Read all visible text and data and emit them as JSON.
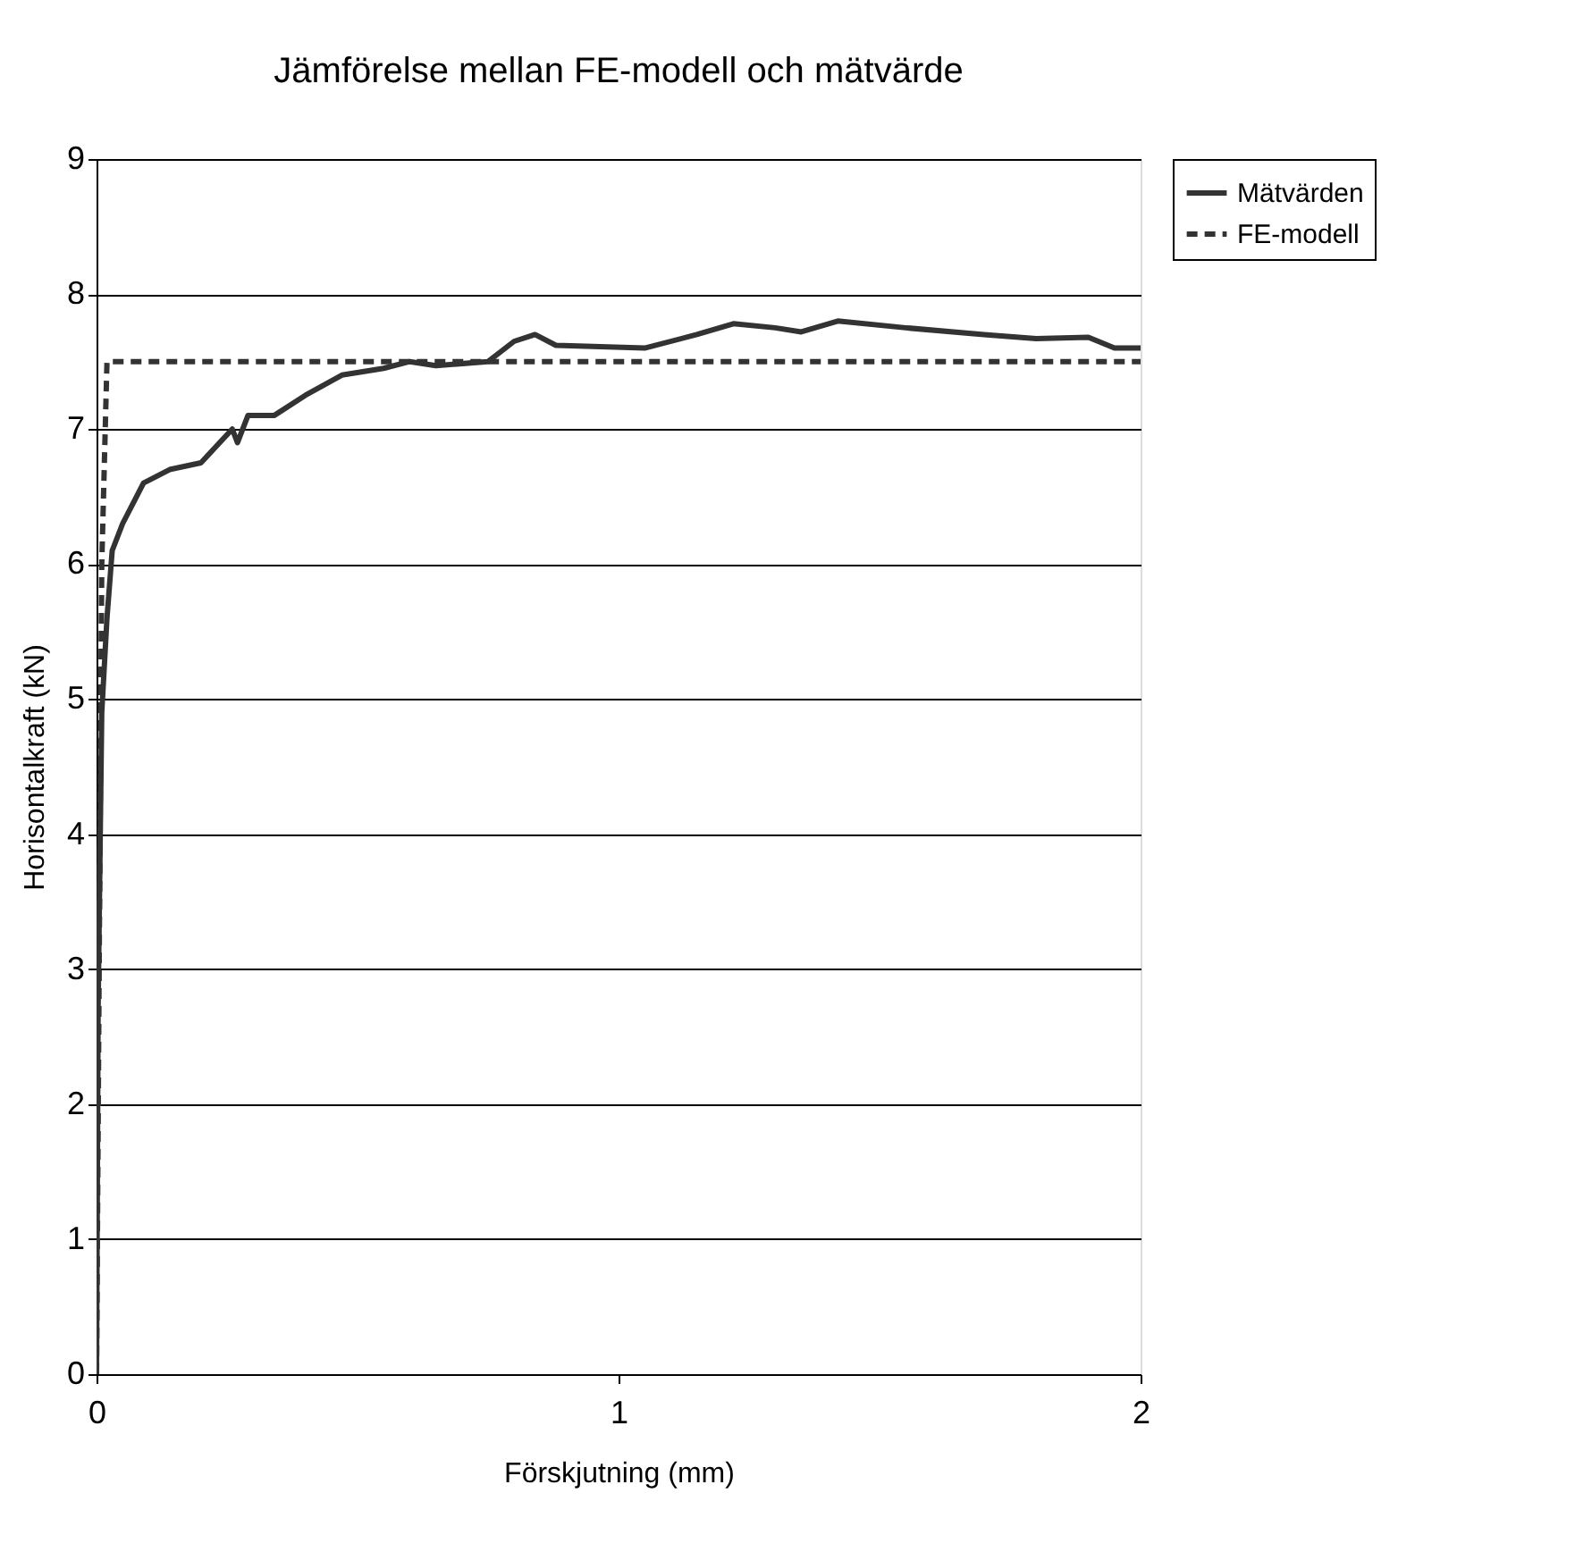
{
  "chart_data": {
    "type": "line",
    "title": "Jämförelse mellan FE-modell och mätvärde",
    "xlabel": "Förskjutning (mm)",
    "ylabel": "Horisontalkraft (kN)",
    "xlim": [
      0,
      2
    ],
    "xticks": [
      0,
      1,
      2
    ],
    "ylim": [
      0,
      9
    ],
    "yticks": [
      0,
      1,
      2,
      3,
      4,
      5,
      6,
      7,
      8,
      9
    ],
    "grid": "y",
    "legend": "right",
    "marker": "none",
    "series": [
      {
        "name": "Mätvärden",
        "color": "#333333",
        "line_style": "solid",
        "x": [
          0,
          0.003,
          0.01,
          0.02,
          0.03,
          0.05,
          0.07,
          0.09,
          0.14,
          0.2,
          0.26,
          0.27,
          0.29,
          0.34,
          0.4,
          0.47,
          0.55,
          0.6,
          0.65,
          0.75,
          0.8,
          0.84,
          0.88,
          1.05,
          1.15,
          1.22,
          1.3,
          1.35,
          1.42,
          1.55,
          1.7,
          1.8,
          1.9,
          1.95,
          2
        ],
        "values": [
          0,
          2.7,
          4.9,
          5.6,
          6.1,
          6.3,
          6.45,
          6.6,
          6.7,
          6.75,
          7.0,
          6.9,
          7.1,
          7.1,
          7.25,
          7.4,
          7.45,
          7.5,
          7.47,
          7.5,
          7.65,
          7.7,
          7.62,
          7.6,
          7.7,
          7.78,
          7.75,
          7.72,
          7.8,
          7.75,
          7.7,
          7.67,
          7.68,
          7.6,
          7.6
        ]
      },
      {
        "name": "FE-modell",
        "color": "#333333",
        "line_style": "dashed",
        "x": [
          0,
          0.01,
          0.02,
          2
        ],
        "values": [
          0,
          6.0,
          7.5,
          7.5
        ]
      }
    ]
  }
}
